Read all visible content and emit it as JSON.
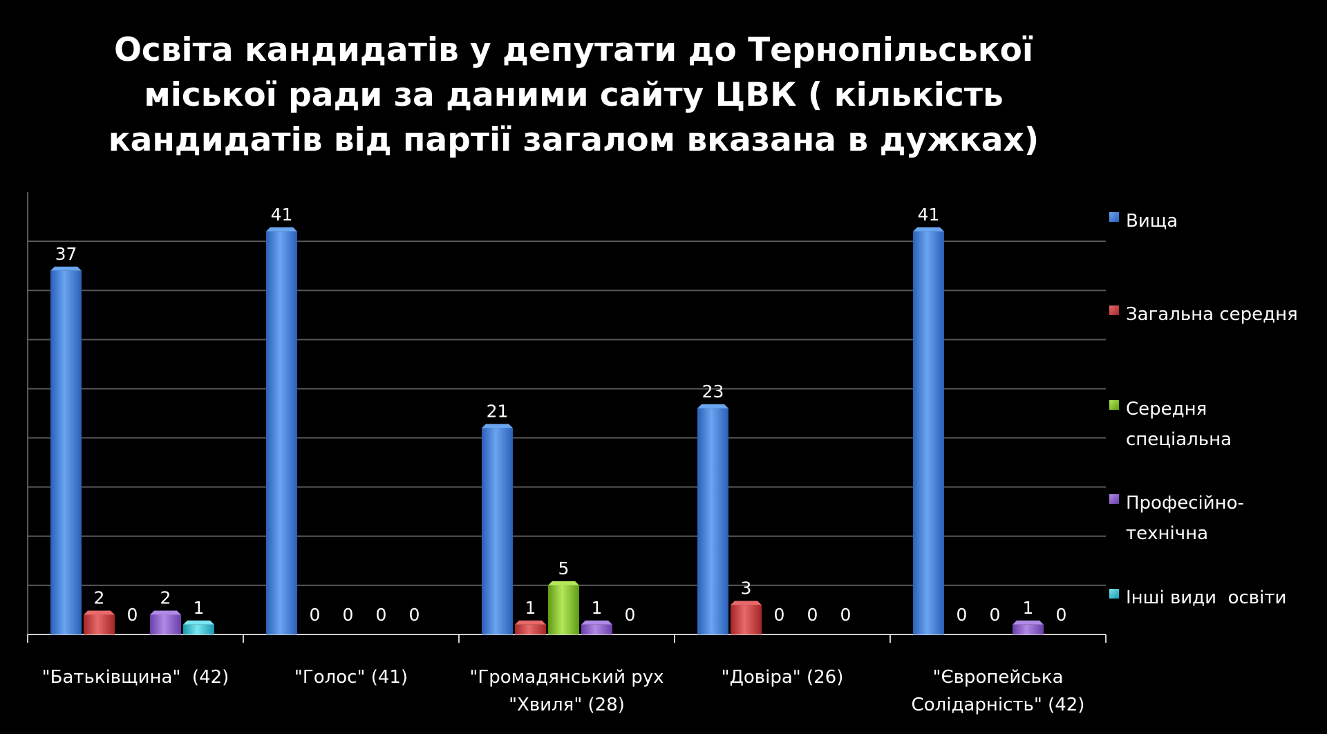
{
  "chart_data": {
    "type": "bar",
    "title_lines": [
      "Освіта кандидатів у депутати до Тернопільської",
      "міської ради за даними сайту ЦВК ( кількість",
      "кандидатів від партії загалом вказана в дужках)"
    ],
    "categories": [
      [
        "\"Батьківщина\"  (42)"
      ],
      [
        "\"Голос\" (41)"
      ],
      [
        "\"Громадянський рух",
        "\"Хвиля\" (28)"
      ],
      [
        "\"Довіра\" (26)"
      ],
      [
        "\"Європейська",
        "Солідарність\" (42)"
      ]
    ],
    "series": [
      {
        "name": "Вища",
        "values": [
          37,
          41,
          21,
          23,
          41
        ]
      },
      {
        "name": "Загальна середня",
        "values": [
          2,
          0,
          1,
          3,
          0
        ]
      },
      {
        "name": "Середня спеціальна",
        "values": [
          0,
          0,
          5,
          0,
          0
        ]
      },
      {
        "name": "Професійно-технічна",
        "values": [
          2,
          0,
          1,
          0,
          1
        ]
      },
      {
        "name": "Інші види освіти",
        "values": [
          1,
          0,
          0,
          0,
          0
        ]
      }
    ],
    "legend_lines": [
      [
        "Вища"
      ],
      [
        "Загальна середня"
      ],
      [
        "Середня",
        "спеціальна"
      ],
      [
        "Професійно-",
        "технічна"
      ],
      [
        "Інші види  освіти"
      ]
    ],
    "colors": [
      "#3d7ad6",
      "#c93a3a",
      "#86c22a",
      "#8a5cc9",
      "#2cc3dc"
    ],
    "ylim": [
      0,
      45
    ],
    "grid": true,
    "legend_position": "right"
  }
}
